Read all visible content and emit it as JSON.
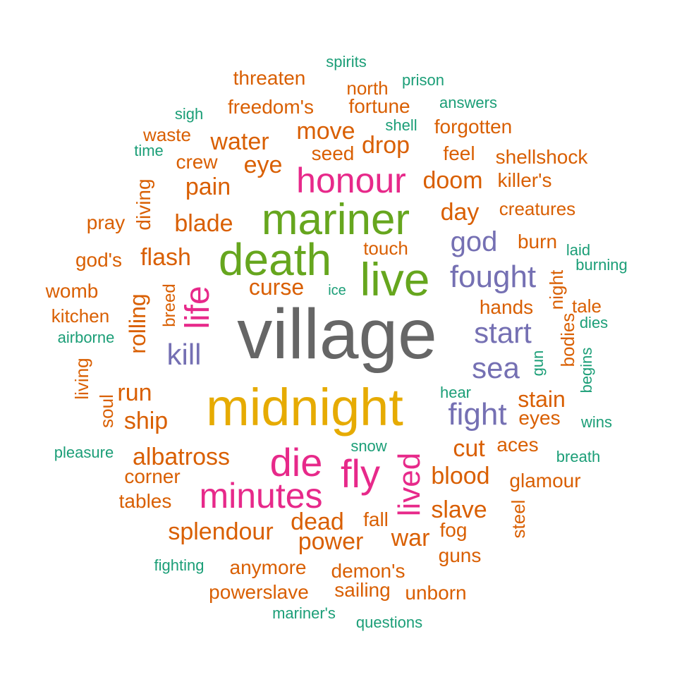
{
  "palette": {
    "gray": "#666666",
    "gold": "#E6AB02",
    "green": "#66A61E",
    "magenta": "#E7298A",
    "purple": "#7570B3",
    "orange": "#D95F02",
    "teal": "#1B9E77"
  },
  "words": [
    {
      "text": "village",
      "color": "gray",
      "rot": 0
    },
    {
      "text": "midnight",
      "color": "gold",
      "rot": 0
    },
    {
      "text": "mariner",
      "color": "green",
      "rot": 0
    },
    {
      "text": "death",
      "color": "green",
      "rot": 0
    },
    {
      "text": "live",
      "color": "green",
      "rot": 0
    },
    {
      "text": "honour",
      "color": "magenta",
      "rot": 0
    },
    {
      "text": "life",
      "color": "magenta",
      "rot": -90
    },
    {
      "text": "die",
      "color": "magenta",
      "rot": 0
    },
    {
      "text": "fly",
      "color": "magenta",
      "rot": 0
    },
    {
      "text": "minutes",
      "color": "magenta",
      "rot": 0
    },
    {
      "text": "lived",
      "color": "magenta",
      "rot": -90
    },
    {
      "text": "fought",
      "color": "purple",
      "rot": 0
    },
    {
      "text": "god",
      "color": "purple",
      "rot": 0
    },
    {
      "text": "start",
      "color": "purple",
      "rot": 0
    },
    {
      "text": "sea",
      "color": "purple",
      "rot": 0
    },
    {
      "text": "fight",
      "color": "purple",
      "rot": 0
    },
    {
      "text": "kill",
      "color": "purple",
      "rot": 0
    },
    {
      "text": "threaten",
      "color": "orange",
      "rot": 0
    },
    {
      "text": "north",
      "color": "orange",
      "rot": 0
    },
    {
      "text": "freedom's",
      "color": "orange",
      "rot": 0
    },
    {
      "text": "fortune",
      "color": "orange",
      "rot": 0
    },
    {
      "text": "waste",
      "color": "orange",
      "rot": 0
    },
    {
      "text": "move",
      "color": "orange",
      "rot": 0
    },
    {
      "text": "forgotten",
      "color": "orange",
      "rot": 0
    },
    {
      "text": "water",
      "color": "orange",
      "rot": 0
    },
    {
      "text": "drop",
      "color": "orange",
      "rot": 0
    },
    {
      "text": "seed",
      "color": "orange",
      "rot": 0
    },
    {
      "text": "feel",
      "color": "orange",
      "rot": 0
    },
    {
      "text": "shellshock",
      "color": "orange",
      "rot": 0
    },
    {
      "text": "crew",
      "color": "orange",
      "rot": 0
    },
    {
      "text": "eye",
      "color": "orange",
      "rot": 0
    },
    {
      "text": "doom",
      "color": "orange",
      "rot": 0
    },
    {
      "text": "killer's",
      "color": "orange",
      "rot": 0
    },
    {
      "text": "pain",
      "color": "orange",
      "rot": 0
    },
    {
      "text": "day",
      "color": "orange",
      "rot": 0
    },
    {
      "text": "creatures",
      "color": "orange",
      "rot": 0
    },
    {
      "text": "pray",
      "color": "orange",
      "rot": 0
    },
    {
      "text": "blade",
      "color": "orange",
      "rot": 0
    },
    {
      "text": "diving",
      "color": "orange",
      "rot": -90
    },
    {
      "text": "burn",
      "color": "orange",
      "rot": 0
    },
    {
      "text": "touch",
      "color": "orange",
      "rot": 0
    },
    {
      "text": "god's",
      "color": "orange",
      "rot": 0
    },
    {
      "text": "flash",
      "color": "orange",
      "rot": 0
    },
    {
      "text": "night",
      "color": "orange",
      "rot": -90
    },
    {
      "text": "curse",
      "color": "orange",
      "rot": 0
    },
    {
      "text": "womb",
      "color": "orange",
      "rot": 0
    },
    {
      "text": "hands",
      "color": "orange",
      "rot": 0
    },
    {
      "text": "tale",
      "color": "orange",
      "rot": 0
    },
    {
      "text": "kitchen",
      "color": "orange",
      "rot": 0
    },
    {
      "text": "breed",
      "color": "orange",
      "rot": -90
    },
    {
      "text": "rolling",
      "color": "orange",
      "rot": -90
    },
    {
      "text": "bodies",
      "color": "orange",
      "rot": -90
    },
    {
      "text": "living",
      "color": "orange",
      "rot": -90
    },
    {
      "text": "run",
      "color": "orange",
      "rot": 0
    },
    {
      "text": "soul",
      "color": "orange",
      "rot": -90
    },
    {
      "text": "ship",
      "color": "orange",
      "rot": 0
    },
    {
      "text": "stain",
      "color": "orange",
      "rot": 0
    },
    {
      "text": "eyes",
      "color": "orange",
      "rot": 0
    },
    {
      "text": "cut",
      "color": "orange",
      "rot": 0
    },
    {
      "text": "aces",
      "color": "orange",
      "rot": 0
    },
    {
      "text": "albatross",
      "color": "orange",
      "rot": 0
    },
    {
      "text": "corner",
      "color": "orange",
      "rot": 0
    },
    {
      "text": "blood",
      "color": "orange",
      "rot": 0
    },
    {
      "text": "glamour",
      "color": "orange",
      "rot": 0
    },
    {
      "text": "tables",
      "color": "orange",
      "rot": 0
    },
    {
      "text": "steel",
      "color": "orange",
      "rot": -90
    },
    {
      "text": "slave",
      "color": "orange",
      "rot": 0
    },
    {
      "text": "splendour",
      "color": "orange",
      "rot": 0
    },
    {
      "text": "dead",
      "color": "orange",
      "rot": 0
    },
    {
      "text": "fall",
      "color": "orange",
      "rot": 0
    },
    {
      "text": "fog",
      "color": "orange",
      "rot": 0
    },
    {
      "text": "power",
      "color": "orange",
      "rot": 0
    },
    {
      "text": "war",
      "color": "orange",
      "rot": 0
    },
    {
      "text": "guns",
      "color": "orange",
      "rot": 0
    },
    {
      "text": "anymore",
      "color": "orange",
      "rot": 0
    },
    {
      "text": "demon's",
      "color": "orange",
      "rot": 0
    },
    {
      "text": "powerslave",
      "color": "orange",
      "rot": 0
    },
    {
      "text": "sailing",
      "color": "orange",
      "rot": 0
    },
    {
      "text": "unborn",
      "color": "orange",
      "rot": 0
    },
    {
      "text": "spirits",
      "color": "teal",
      "rot": 0
    },
    {
      "text": "prison",
      "color": "teal",
      "rot": 0
    },
    {
      "text": "answers",
      "color": "teal",
      "rot": 0
    },
    {
      "text": "sigh",
      "color": "teal",
      "rot": 0
    },
    {
      "text": "shell",
      "color": "teal",
      "rot": 0
    },
    {
      "text": "time",
      "color": "teal",
      "rot": 0
    },
    {
      "text": "laid",
      "color": "teal",
      "rot": 0
    },
    {
      "text": "burning",
      "color": "teal",
      "rot": 0
    },
    {
      "text": "ice",
      "color": "teal",
      "rot": 0
    },
    {
      "text": "dies",
      "color": "teal",
      "rot": 0
    },
    {
      "text": "airborne",
      "color": "teal",
      "rot": 0
    },
    {
      "text": "gun",
      "color": "teal",
      "rot": -90
    },
    {
      "text": "begins",
      "color": "teal",
      "rot": -90
    },
    {
      "text": "hear",
      "color": "teal",
      "rot": 0
    },
    {
      "text": "wins",
      "color": "teal",
      "rot": 0
    },
    {
      "text": "snow",
      "color": "teal",
      "rot": 0
    },
    {
      "text": "pleasure",
      "color": "teal",
      "rot": 0
    },
    {
      "text": "breath",
      "color": "teal",
      "rot": 0
    },
    {
      "text": "fighting",
      "color": "teal",
      "rot": 0
    },
    {
      "text": "mariner's",
      "color": "teal",
      "rot": 0
    },
    {
      "text": "questions",
      "color": "teal",
      "rot": 0
    }
  ]
}
